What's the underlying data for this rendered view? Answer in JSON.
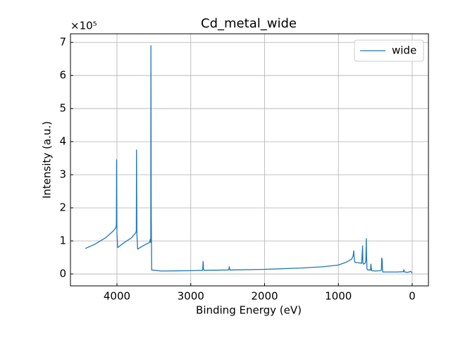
{
  "chart_data": {
    "type": "line",
    "title": "Cd_metal_wide",
    "x_label": "Binding Energy (eV)",
    "y_label": "Intensity (a.u.)",
    "y_offset_label": "×10⁵",
    "x": [
      4430,
      4300,
      4150,
      4050,
      4015,
      4008,
      4005,
      4000,
      3990,
      3900,
      3800,
      3745,
      3738,
      3735,
      3730,
      3720,
      3650,
      3560,
      3548,
      3542,
      3540,
      3536,
      3530,
      3400,
      3000,
      2840,
      2832,
      2828,
      2820,
      2500,
      2485,
      2478,
      2470,
      2000,
      1500,
      1200,
      1000,
      900,
      820,
      800,
      792,
      785,
      775,
      700,
      685,
      672,
      668,
      660,
      640,
      628,
      622,
      618,
      612,
      600,
      580,
      565,
      560,
      550,
      500,
      430,
      418,
      413,
      408,
      400,
      300,
      200,
      120,
      112,
      105,
      60,
      20,
      0
    ],
    "series": [
      {
        "name": "wide",
        "color": "#1f77b4",
        "values": [
          0.77,
          0.9,
          1.1,
          1.3,
          1.4,
          1.5,
          3.45,
          1.2,
          0.8,
          0.95,
          1.1,
          1.25,
          1.3,
          3.75,
          1.2,
          0.75,
          0.85,
          0.95,
          1.05,
          0.95,
          6.9,
          2.0,
          0.12,
          0.09,
          0.1,
          0.11,
          0.38,
          0.15,
          0.11,
          0.12,
          0.13,
          0.22,
          0.12,
          0.14,
          0.18,
          0.22,
          0.27,
          0.35,
          0.45,
          0.55,
          0.7,
          0.45,
          0.35,
          0.33,
          0.32,
          0.85,
          0.35,
          0.3,
          0.32,
          0.4,
          1.07,
          0.5,
          0.15,
          0.12,
          0.12,
          0.12,
          0.3,
          0.1,
          0.09,
          0.1,
          0.12,
          0.48,
          0.45,
          0.06,
          0.06,
          0.06,
          0.07,
          0.13,
          0.06,
          0.05,
          0.08,
          0.03
        ]
      }
    ],
    "xlim": [
      4630,
      -220
    ],
    "xticks": [
      4000,
      3000,
      2000,
      1000,
      0
    ],
    "ylim": [
      -0.36,
      7.26
    ],
    "yticks": [
      0,
      1,
      2,
      3,
      4,
      5,
      6,
      7
    ],
    "grid": true,
    "legend": "upper right"
  }
}
